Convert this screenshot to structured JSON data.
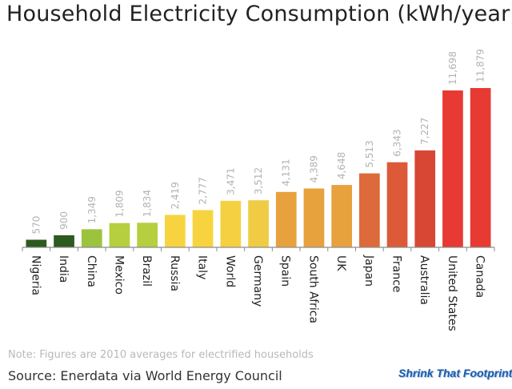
{
  "title": "Household Electricity Consumption (kWh/year)",
  "note": "Note: Figures are 2010 averages for electrified households",
  "source": "Source:  Enerdata via World Energy Council",
  "logo_text": "Shrink That Footprint",
  "chart_data": {
    "type": "bar",
    "title": "Household Electricity Consumption (kWh/year)",
    "xlabel": "",
    "ylabel": "",
    "ylim": [
      0,
      12000
    ],
    "grid": false,
    "categories": [
      "Nigeria",
      "India",
      "China",
      "Mexico",
      "Brazil",
      "Russia",
      "Italy",
      "World",
      "Germany",
      "Spain",
      "South Africa",
      "UK",
      "Japan",
      "France",
      "Australia",
      "United States",
      "Canada"
    ],
    "values": [
      570,
      900,
      1349,
      1809,
      1834,
      2419,
      2777,
      3471,
      3512,
      4131,
      4389,
      4648,
      5513,
      6343,
      7227,
      11698,
      11879
    ],
    "data_labels": [
      "570",
      "900",
      "1,349",
      "1,809",
      "1,834",
      "2,419",
      "2,777",
      "3,471",
      "3,512",
      "4,131",
      "4,389",
      "4,648",
      "5,513",
      "6,343",
      "7,227",
      "11,698",
      "11,879"
    ],
    "bar_colors": [
      "#2d5a1f",
      "#2d5a1f",
      "#9cc33e",
      "#b5cf3e",
      "#b5cf3e",
      "#f7d43f",
      "#f7d43f",
      "#f5d142",
      "#f0cc45",
      "#e7a13d",
      "#e7a13d",
      "#e7a13d",
      "#dd6a3a",
      "#dd5a38",
      "#d84634",
      "#e63a32",
      "#e63a32"
    ]
  }
}
